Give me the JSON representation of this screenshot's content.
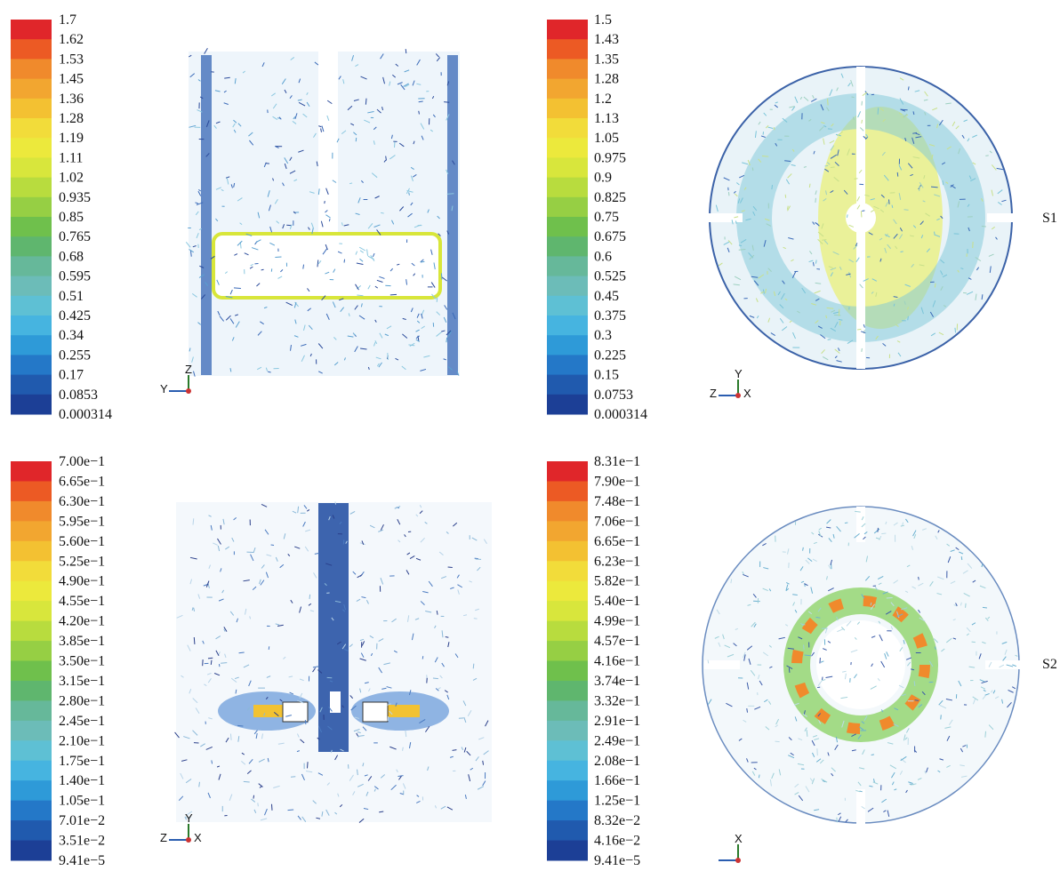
{
  "panels": [
    {
      "labels": [
        "1.7",
        "1.62",
        "1.53",
        "1.45",
        "1.36",
        "1.28",
        "1.19",
        "1.11",
        "1.02",
        "0.935",
        "0.85",
        "0.765",
        "0.68",
        "0.595",
        "0.51",
        "0.425",
        "0.34",
        "0.255",
        "0.17",
        "0.0853",
        "0.000314"
      ],
      "axes": [
        "Z",
        "Y"
      ]
    },
    {
      "labels": [
        "1.5",
        "1.43",
        "1.35",
        "1.28",
        "1.2",
        "1.13",
        "1.05",
        "0.975",
        "0.9",
        "0.825",
        "0.75",
        "0.675",
        "0.6",
        "0.525",
        "0.45",
        "0.375",
        "0.3",
        "0.225",
        "0.15",
        "0.0753",
        "0.000314"
      ],
      "axes": [
        "Y",
        "Z",
        "X"
      ]
    },
    {
      "labels": [
        "7.00e−1",
        "6.65e−1",
        "6.30e−1",
        "5.95e−1",
        "5.60e−1",
        "5.25e−1",
        "4.90e−1",
        "4.55e−1",
        "4.20e−1",
        "3.85e−1",
        "3.50e−1",
        "3.15e−1",
        "2.80e−1",
        "2.45e−1",
        "2.10e−1",
        "1.75e−1",
        "1.40e−1",
        "1.05e−1",
        "7.01e−2",
        "3.51e−2",
        "9.41e−5"
      ],
      "axes": [
        "Y",
        "Z",
        "X"
      ]
    },
    {
      "labels": [
        "8.31e−1",
        "7.90e−1",
        "7.48e−1",
        "7.06e−1",
        "6.65e−1",
        "6.23e−1",
        "5.82e−1",
        "5.40e−1",
        "4.99e−1",
        "4.57e−1",
        "4.16e−1",
        "3.74e−1",
        "3.32e−1",
        "2.91e−1",
        "2.49e−1",
        "2.08e−1",
        "1.66e−1",
        "1.25e−1",
        "8.32e−2",
        "4.16e−2",
        "9.41e−5"
      ],
      "axes": [
        "X"
      ]
    }
  ],
  "side_labels": [
    "S1",
    "S2"
  ]
}
